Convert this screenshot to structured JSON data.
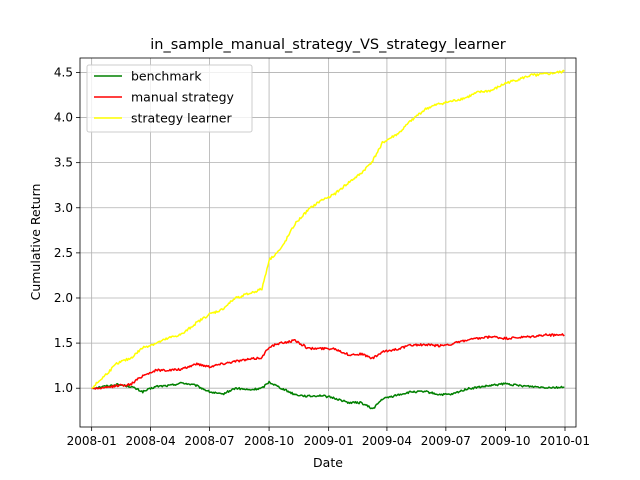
{
  "chart_data": {
    "type": "line",
    "title": "in_sample_manual_strategy_VS_strategy_learner",
    "xlabel": "Date",
    "ylabel": "Cumulative Return",
    "x_range": [
      "2007-12-14",
      "2010-01-18"
    ],
    "ylim": [
      0.57,
      4.66
    ],
    "grid": true,
    "legend_position": "top-left",
    "x_ticks": [
      {
        "date": "2008-01-01",
        "label": "2008-01"
      },
      {
        "date": "2008-04-01",
        "label": "2008-04"
      },
      {
        "date": "2008-07-01",
        "label": "2008-07"
      },
      {
        "date": "2008-10-01",
        "label": "2008-10"
      },
      {
        "date": "2009-01-01",
        "label": "2009-01"
      },
      {
        "date": "2009-04-01",
        "label": "2009-04"
      },
      {
        "date": "2009-07-01",
        "label": "2009-07"
      },
      {
        "date": "2009-10-01",
        "label": "2009-10"
      },
      {
        "date": "2010-01-01",
        "label": "2010-01"
      }
    ],
    "y_ticks": [
      {
        "value": 1.0,
        "label": "1.0"
      },
      {
        "value": 1.5,
        "label": "1.5"
      },
      {
        "value": 2.0,
        "label": "2.0"
      },
      {
        "value": 2.5,
        "label": "2.5"
      },
      {
        "value": 3.0,
        "label": "3.0"
      },
      {
        "value": 3.5,
        "label": "3.5"
      },
      {
        "value": 4.0,
        "label": "4.0"
      },
      {
        "value": 4.5,
        "label": "4.5"
      }
    ],
    "series": [
      {
        "name": "benchmark",
        "color": "#008000",
        "points": [
          [
            "2008-01-01",
            1.0
          ],
          [
            "2008-01-20",
            1.02
          ],
          [
            "2008-02-10",
            1.04
          ],
          [
            "2008-03-01",
            1.02
          ],
          [
            "2008-03-20",
            0.96
          ],
          [
            "2008-04-10",
            1.02
          ],
          [
            "2008-05-01",
            1.03
          ],
          [
            "2008-05-20",
            1.06
          ],
          [
            "2008-06-10",
            1.03
          ],
          [
            "2008-07-01",
            0.96
          ],
          [
            "2008-07-20",
            0.93
          ],
          [
            "2008-08-10",
            1.0
          ],
          [
            "2008-09-01",
            0.98
          ],
          [
            "2008-09-20",
            1.0
          ],
          [
            "2008-10-01",
            1.07
          ],
          [
            "2008-10-20",
            1.0
          ],
          [
            "2008-11-10",
            0.93
          ],
          [
            "2008-12-01",
            0.91
          ],
          [
            "2008-12-20",
            0.92
          ],
          [
            "2009-01-10",
            0.89
          ],
          [
            "2009-02-01",
            0.84
          ],
          [
            "2009-02-20",
            0.84
          ],
          [
            "2009-03-10",
            0.77
          ],
          [
            "2009-03-25",
            0.88
          ],
          [
            "2009-04-20",
            0.93
          ],
          [
            "2009-05-10",
            0.96
          ],
          [
            "2009-06-01",
            0.96
          ],
          [
            "2009-06-20",
            0.93
          ],
          [
            "2009-07-10",
            0.93
          ],
          [
            "2009-08-01",
            0.99
          ],
          [
            "2009-08-20",
            1.01
          ],
          [
            "2009-09-10",
            1.03
          ],
          [
            "2009-10-01",
            1.05
          ],
          [
            "2009-10-20",
            1.03
          ],
          [
            "2009-11-10",
            1.02
          ],
          [
            "2009-12-01",
            1.01
          ],
          [
            "2009-12-31",
            1.01
          ]
        ]
      },
      {
        "name": "manual strategy",
        "color": "#ff0000",
        "points": [
          [
            "2008-01-01",
            1.0
          ],
          [
            "2008-01-20",
            1.0
          ],
          [
            "2008-02-10",
            1.03
          ],
          [
            "2008-03-01",
            1.04
          ],
          [
            "2008-03-20",
            1.14
          ],
          [
            "2008-04-10",
            1.2
          ],
          [
            "2008-05-01",
            1.2
          ],
          [
            "2008-05-20",
            1.21
          ],
          [
            "2008-06-10",
            1.27
          ],
          [
            "2008-07-01",
            1.24
          ],
          [
            "2008-07-20",
            1.27
          ],
          [
            "2008-08-10",
            1.3
          ],
          [
            "2008-09-01",
            1.32
          ],
          [
            "2008-09-20",
            1.34
          ],
          [
            "2008-10-01",
            1.46
          ],
          [
            "2008-10-20",
            1.5
          ],
          [
            "2008-11-10",
            1.53
          ],
          [
            "2008-12-01",
            1.44
          ],
          [
            "2008-12-20",
            1.44
          ],
          [
            "2009-01-10",
            1.44
          ],
          [
            "2009-02-01",
            1.37
          ],
          [
            "2009-02-20",
            1.38
          ],
          [
            "2009-03-10",
            1.33
          ],
          [
            "2009-03-25",
            1.4
          ],
          [
            "2009-04-20",
            1.44
          ],
          [
            "2009-05-10",
            1.48
          ],
          [
            "2009-06-01",
            1.48
          ],
          [
            "2009-06-20",
            1.47
          ],
          [
            "2009-07-10",
            1.49
          ],
          [
            "2009-08-01",
            1.53
          ],
          [
            "2009-08-20",
            1.55
          ],
          [
            "2009-09-10",
            1.57
          ],
          [
            "2009-10-01",
            1.55
          ],
          [
            "2009-10-20",
            1.56
          ],
          [
            "2009-11-10",
            1.57
          ],
          [
            "2009-12-01",
            1.59
          ],
          [
            "2009-12-31",
            1.59
          ]
        ]
      },
      {
        "name": "strategy learner",
        "color": "#ffff00",
        "points": [
          [
            "2008-01-01",
            1.0
          ],
          [
            "2008-01-20",
            1.13
          ],
          [
            "2008-02-10",
            1.28
          ],
          [
            "2008-03-01",
            1.33
          ],
          [
            "2008-03-20",
            1.45
          ],
          [
            "2008-04-10",
            1.5
          ],
          [
            "2008-05-01",
            1.56
          ],
          [
            "2008-05-20",
            1.6
          ],
          [
            "2008-06-10",
            1.72
          ],
          [
            "2008-07-01",
            1.82
          ],
          [
            "2008-07-20",
            1.87
          ],
          [
            "2008-08-10",
            2.0
          ],
          [
            "2008-09-01",
            2.05
          ],
          [
            "2008-09-20",
            2.1
          ],
          [
            "2008-10-01",
            2.42
          ],
          [
            "2008-10-20",
            2.55
          ],
          [
            "2008-11-10",
            2.82
          ],
          [
            "2008-12-01",
            2.98
          ],
          [
            "2008-12-20",
            3.08
          ],
          [
            "2009-01-10",
            3.15
          ],
          [
            "2009-02-01",
            3.28
          ],
          [
            "2009-02-20",
            3.38
          ],
          [
            "2009-03-10",
            3.52
          ],
          [
            "2009-03-25",
            3.72
          ],
          [
            "2009-04-20",
            3.83
          ],
          [
            "2009-05-10",
            3.98
          ],
          [
            "2009-06-01",
            4.1
          ],
          [
            "2009-06-20",
            4.15
          ],
          [
            "2009-07-10",
            4.18
          ],
          [
            "2009-08-01",
            4.22
          ],
          [
            "2009-08-20",
            4.28
          ],
          [
            "2009-09-10",
            4.3
          ],
          [
            "2009-10-01",
            4.38
          ],
          [
            "2009-10-20",
            4.42
          ],
          [
            "2009-11-10",
            4.47
          ],
          [
            "2009-12-01",
            4.48
          ],
          [
            "2009-12-31",
            4.51
          ]
        ]
      }
    ]
  }
}
